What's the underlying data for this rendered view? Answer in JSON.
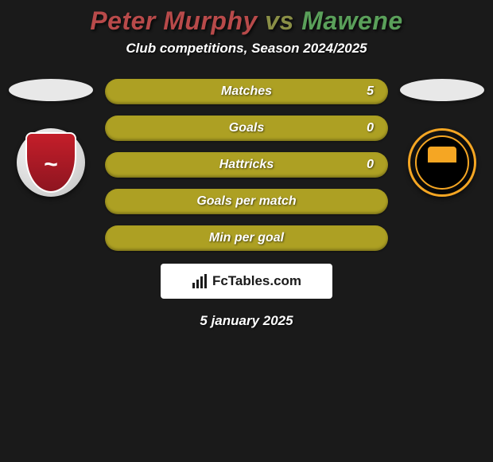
{
  "title": {
    "player1": "Peter Murphy",
    "vs": "vs",
    "player2": "Mawene",
    "player1_color": "#b84a4a",
    "vs_color": "#8a8f46",
    "player2_color": "#5aa05a"
  },
  "subtitle": "Club competitions, Season 2024/2025",
  "ellipse_colors": {
    "left": "#e8e8e8",
    "right": "#e8e8e8"
  },
  "stats": [
    {
      "label": "Matches",
      "value_right": "5",
      "bg": "#ada023"
    },
    {
      "label": "Goals",
      "value_right": "0",
      "bg": "#ada023"
    },
    {
      "label": "Hattricks",
      "value_right": "0",
      "bg": "#ada023"
    },
    {
      "label": "Goals per match",
      "value_right": "",
      "bg": "#ada023"
    },
    {
      "label": "Min per goal",
      "value_right": "",
      "bg": "#ada023"
    }
  ],
  "logo_text": "FcTables.com",
  "date": "5 january 2025",
  "colors": {
    "background": "#1a1a1a",
    "text": "#ffffff"
  }
}
